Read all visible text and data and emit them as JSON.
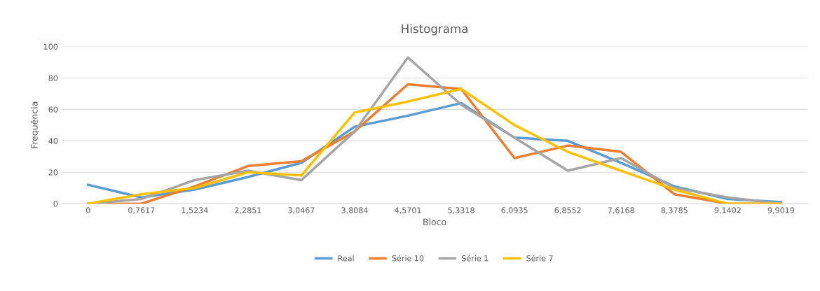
{
  "chart_data": {
    "type": "line",
    "title": "Histograma",
    "xlabel": "Bloco",
    "ylabel": "Frequência",
    "categories": [
      "0",
      "0,7617",
      "1,5234",
      "2,2851",
      "3,0467",
      "3,8084",
      "4,5701",
      "5,3318",
      "6,0935",
      "6,8552",
      "7,6168",
      "8,3785",
      "9,1402",
      "9,9019"
    ],
    "series": [
      {
        "name": "Real",
        "color": "#5b9bd5",
        "values": [
          12,
          4,
          9,
          17,
          26,
          49,
          56,
          64,
          42,
          40,
          26,
          11,
          3,
          1
        ]
      },
      {
        "name": "Série 10",
        "color": "#ed7d31",
        "values": [
          0,
          0,
          11,
          24,
          27,
          46,
          76,
          73,
          29,
          37,
          33,
          6,
          0,
          0
        ]
      },
      {
        "name": "Série 1",
        "color": "#a5a5a5",
        "values": [
          0,
          3,
          15,
          21,
          15,
          46,
          93,
          63,
          42,
          21,
          29,
          10,
          4,
          0
        ]
      },
      {
        "name": "Série 7",
        "color": "#ffc000",
        "values": [
          0,
          6,
          10,
          20,
          18,
          58,
          65,
          73,
          50,
          33,
          21,
          9,
          0,
          0
        ]
      }
    ],
    "ylim": [
      0,
      100
    ],
    "yticks": [
      0,
      20,
      40,
      60,
      80,
      100
    ],
    "grid": "y",
    "legend": "bottom",
    "marker": "none",
    "line_style": "solid"
  }
}
